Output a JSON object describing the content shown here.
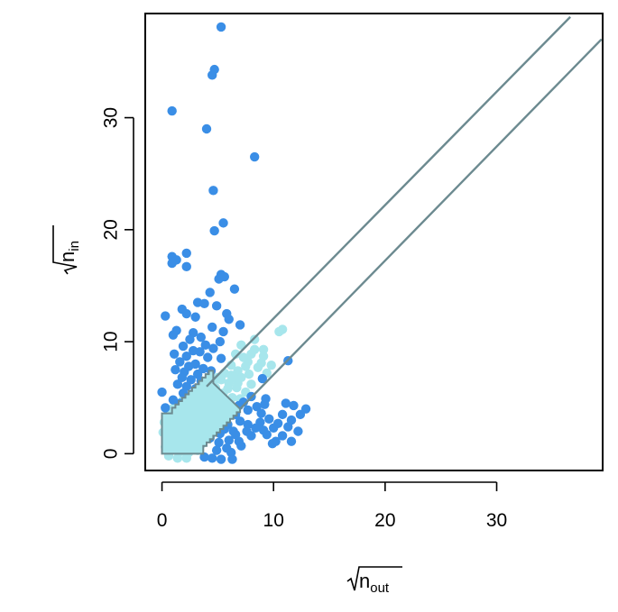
{
  "chart_data": {
    "type": "scatter",
    "title": "",
    "xlabel": {
      "base": "n",
      "sub": "out"
    },
    "ylabel": {
      "base": "n",
      "sub": "in"
    },
    "xlim": [
      -1.5,
      39.5
    ],
    "ylim": [
      -1.5,
      39.3
    ],
    "xticks": [
      "0",
      "10",
      "20",
      "30"
    ],
    "yticks": [
      "0",
      "10",
      "20",
      "30"
    ],
    "grid": false,
    "colors": {
      "highlighted": "#3a8ee6",
      "background": "#a7e6ec",
      "reference_lines": "#6c8a90",
      "frame": "#000000"
    },
    "series": [
      {
        "points": [
          [
            5.3,
            38.1
          ],
          [
            4.7,
            34.3
          ],
          [
            4.5,
            33.8
          ],
          [
            0.9,
            30.6
          ],
          [
            4.0,
            29.0
          ],
          [
            8.3,
            26.5
          ],
          [
            4.6,
            23.5
          ],
          [
            5.5,
            20.6
          ],
          [
            4.7,
            19.9
          ],
          [
            2.2,
            17.9
          ],
          [
            0.9,
            17.6
          ],
          [
            1.3,
            17.3
          ],
          [
            0.9,
            17.0
          ],
          [
            2.2,
            16.7
          ],
          [
            5.3,
            16.0
          ],
          [
            5.6,
            15.8
          ],
          [
            5.1,
            15.6
          ],
          [
            6.5,
            14.7
          ],
          [
            4.3,
            14.4
          ],
          [
            3.2,
            13.5
          ],
          [
            3.8,
            13.4
          ],
          [
            4.9,
            13.2
          ],
          [
            1.8,
            12.9
          ],
          [
            2.2,
            12.5
          ],
          [
            5.8,
            12.5
          ],
          [
            0.3,
            12.3
          ],
          [
            3.0,
            12.2
          ],
          [
            6.0,
            12.0
          ],
          [
            7.0,
            11.5
          ],
          [
            4.5,
            11.3
          ],
          [
            1.3,
            11.0
          ],
          [
            2.8,
            10.8
          ],
          [
            5.5,
            10.9
          ],
          [
            1.0,
            10.6
          ],
          [
            3.5,
            10.4
          ],
          [
            2.5,
            10.2
          ],
          [
            5.2,
            10.0
          ],
          [
            3.9,
            9.7
          ],
          [
            1.9,
            9.6
          ],
          [
            4.6,
            9.4
          ],
          [
            2.8,
            9.2
          ],
          [
            3.4,
            9.1
          ],
          [
            1.1,
            8.9
          ],
          [
            2.2,
            8.7
          ],
          [
            4.1,
            8.6
          ],
          [
            5.3,
            8.5
          ],
          [
            1.6,
            8.2
          ],
          [
            3.0,
            8.0
          ],
          [
            2.4,
            7.8
          ],
          [
            3.7,
            7.6
          ],
          [
            1.2,
            7.5
          ],
          [
            2.0,
            7.3
          ],
          [
            4.4,
            7.4
          ],
          [
            3.2,
            7.1
          ],
          [
            1.8,
            6.8
          ],
          [
            2.6,
            6.6
          ],
          [
            3.5,
            6.5
          ],
          [
            1.4,
            6.2
          ],
          [
            2.2,
            6.0
          ],
          [
            3.0,
            5.8
          ],
          [
            1.9,
            5.4
          ],
          [
            2.6,
            5.1
          ],
          [
            1.0,
            4.8
          ],
          [
            1.6,
            4.5
          ],
          [
            0.3,
            4.1
          ],
          [
            0.0,
            5.5
          ],
          [
            11.3,
            8.3
          ],
          [
            9.0,
            6.7
          ],
          [
            6.2,
            0.1
          ],
          [
            6.3,
            -0.5
          ],
          [
            5.3,
            -0.5
          ],
          [
            4.5,
            -0.4
          ],
          [
            3.8,
            -0.3
          ],
          [
            4.9,
            0.3
          ],
          [
            5.8,
            0.5
          ],
          [
            5.1,
            1.0
          ],
          [
            6.0,
            1.2
          ],
          [
            6.9,
            1.1
          ],
          [
            4.3,
            1.4
          ],
          [
            5.2,
            1.8
          ],
          [
            6.4,
            2.0
          ],
          [
            7.6,
            2.0
          ],
          [
            8.4,
            2.3
          ],
          [
            9.1,
            2.1
          ],
          [
            10.2,
            1.1
          ],
          [
            11.6,
            1.1
          ],
          [
            10.8,
            1.6
          ],
          [
            12.2,
            2.0
          ],
          [
            11.3,
            2.4
          ],
          [
            12.9,
            4.0
          ],
          [
            11.6,
            3.0
          ],
          [
            10.4,
            2.7
          ],
          [
            10.8,
            3.5
          ],
          [
            9.6,
            3.1
          ],
          [
            8.9,
            3.6
          ],
          [
            8.5,
            4.2
          ],
          [
            7.7,
            3.9
          ],
          [
            7.0,
            2.9
          ],
          [
            6.6,
            3.5
          ],
          [
            5.9,
            2.6
          ],
          [
            5.4,
            3.1
          ],
          [
            4.7,
            2.4
          ],
          [
            7.3,
            4.6
          ],
          [
            8.0,
            5.1
          ],
          [
            9.3,
            4.9
          ],
          [
            9.9,
            0.9
          ],
          [
            11.8,
            4.3
          ],
          [
            12.4,
            3.5
          ],
          [
            9.4,
            1.7
          ],
          [
            8.0,
            1.6
          ],
          [
            7.1,
            0.7
          ],
          [
            6.6,
            1.7
          ],
          [
            5.6,
            2.2
          ],
          [
            6.1,
            3.9
          ],
          [
            8.8,
            2.8
          ],
          [
            10.0,
            2.3
          ],
          [
            11.1,
            4.5
          ],
          [
            7.7,
            2.6
          ],
          [
            6.9,
            4.3
          ],
          [
            9.2,
            4.4
          ]
        ]
      },
      {
        "points": [
          [
            10.8,
            11.1
          ],
          [
            10.5,
            10.9
          ],
          [
            8.3,
            10.2
          ],
          [
            7.1,
            9.7
          ],
          [
            8.3,
            9.3
          ],
          [
            8.0,
            8.9
          ],
          [
            9.1,
            8.7
          ],
          [
            7.3,
            8.6
          ],
          [
            6.6,
            8.9
          ],
          [
            7.7,
            8.2
          ],
          [
            8.6,
            7.7
          ],
          [
            9.4,
            7.2
          ],
          [
            6.8,
            7.4
          ],
          [
            6.2,
            7.9
          ],
          [
            5.6,
            7.2
          ],
          [
            7.1,
            6.8
          ],
          [
            8.0,
            6.2
          ],
          [
            5.0,
            6.8
          ],
          [
            6.0,
            6.3
          ],
          [
            4.8,
            5.9
          ],
          [
            6.7,
            5.9
          ],
          [
            7.5,
            5.5
          ],
          [
            4.2,
            5.3
          ],
          [
            5.5,
            5.4
          ],
          [
            6.3,
            5.0
          ],
          [
            3.6,
            4.7
          ],
          [
            4.6,
            4.6
          ],
          [
            5.7,
            4.4
          ],
          [
            7.0,
            4.9
          ],
          [
            3.0,
            4.2
          ],
          [
            4.0,
            4.0
          ],
          [
            5.0,
            3.8
          ],
          [
            6.1,
            4.1
          ],
          [
            2.5,
            3.7
          ],
          [
            3.4,
            3.5
          ],
          [
            4.4,
            3.3
          ],
          [
            5.4,
            3.5
          ],
          [
            2.0,
            3.2
          ],
          [
            2.9,
            3.0
          ],
          [
            3.8,
            2.8
          ],
          [
            4.8,
            3.0
          ],
          [
            1.6,
            2.7
          ],
          [
            2.4,
            2.5
          ],
          [
            3.3,
            2.3
          ],
          [
            4.1,
            2.2
          ],
          [
            1.2,
            2.2
          ],
          [
            2.0,
            2.0
          ],
          [
            2.8,
            1.9
          ],
          [
            3.6,
            1.6
          ],
          [
            0.8,
            1.8
          ],
          [
            1.6,
            1.5
          ],
          [
            2.4,
            1.3
          ],
          [
            3.1,
            1.1
          ],
          [
            0.5,
            1.2
          ],
          [
            1.2,
            1.0
          ],
          [
            2.0,
            0.8
          ],
          [
            2.8,
            0.6
          ],
          [
            0.3,
            0.6
          ],
          [
            1.0,
            0.4
          ],
          [
            1.7,
            0.2
          ],
          [
            2.4,
            0.1
          ],
          [
            3.2,
            0.3
          ],
          [
            0.6,
            -0.2
          ],
          [
            1.4,
            -0.4
          ],
          [
            2.2,
            -0.4
          ],
          [
            0.2,
            2.8
          ],
          [
            0.5,
            3.4
          ],
          [
            0.9,
            4.0
          ],
          [
            1.4,
            4.4
          ],
          [
            1.9,
            4.8
          ],
          [
            2.6,
            5.2
          ],
          [
            3.3,
            5.6
          ],
          [
            3.9,
            6.0
          ],
          [
            4.6,
            6.4
          ],
          [
            5.3,
            6.6
          ],
          [
            6.2,
            7.0
          ],
          [
            0.1,
            1.9
          ],
          [
            2.0,
            3.8
          ],
          [
            2.9,
            4.3
          ],
          [
            3.7,
            4.9
          ],
          [
            4.5,
            5.3
          ],
          [
            1.3,
            3.0
          ],
          [
            2.2,
            2.8
          ],
          [
            3.0,
            3.4
          ],
          [
            3.9,
            3.8
          ],
          [
            5.2,
            4.6
          ],
          [
            4.3,
            1.5
          ],
          [
            3.6,
            0.9
          ],
          [
            1.0,
            2.6
          ],
          [
            1.8,
            3.5
          ],
          [
            2.6,
            4.0
          ],
          [
            0.4,
            2.3
          ],
          [
            5.9,
            5.8
          ],
          [
            6.8,
            6.3
          ],
          [
            7.8,
            7.1
          ],
          [
            8.9,
            8.1
          ],
          [
            9.8,
            7.9
          ],
          [
            9.1,
            9.3
          ],
          [
            7.5,
            7.8
          ],
          [
            6.4,
            6.8
          ],
          [
            0.7,
            3.0
          ],
          [
            1.5,
            1.9
          ],
          [
            4.9,
            5.1
          ],
          [
            3.5,
            4.3
          ],
          [
            2.4,
            3.3
          ],
          [
            1.1,
            1.4
          ]
        ]
      }
    ],
    "reference_lines": [
      {
        "x": [
          4.0,
          36.6
        ],
        "y": [
          6.0,
          39.0
        ]
      },
      {
        "x": [
          7.0,
          39.4
        ],
        "y": [
          4.0,
          37.0
        ]
      }
    ],
    "step_region": {
      "outline": [
        [
          0.0,
          0.0
        ],
        [
          0.0,
          3.6
        ],
        [
          0.9,
          3.6
        ],
        [
          0.9,
          4.1
        ],
        [
          1.2,
          4.1
        ],
        [
          1.2,
          4.4
        ],
        [
          1.5,
          4.4
        ],
        [
          1.5,
          4.7
        ],
        [
          1.8,
          4.7
        ],
        [
          1.8,
          5.0
        ],
        [
          2.1,
          5.0
        ],
        [
          2.1,
          5.3
        ],
        [
          2.4,
          5.3
        ],
        [
          2.4,
          5.6
        ],
        [
          2.7,
          5.6
        ],
        [
          2.7,
          5.9
        ],
        [
          3.0,
          5.9
        ],
        [
          3.0,
          6.2
        ],
        [
          3.3,
          6.2
        ],
        [
          3.3,
          6.5
        ],
        [
          3.6,
          6.5
        ],
        [
          3.6,
          6.8
        ],
        [
          3.9,
          6.8
        ],
        [
          3.9,
          7.1
        ],
        [
          4.2,
          7.1
        ],
        [
          4.2,
          7.4
        ],
        [
          4.6,
          7.4
        ],
        [
          4.6,
          6.3
        ],
        [
          7.0,
          4.0
        ],
        [
          7.0,
          3.7
        ],
        [
          6.7,
          3.7
        ],
        [
          6.7,
          3.4
        ],
        [
          6.4,
          3.4
        ],
        [
          6.4,
          3.1
        ],
        [
          6.1,
          3.1
        ],
        [
          6.1,
          2.8
        ],
        [
          5.8,
          2.8
        ],
        [
          5.8,
          2.5
        ],
        [
          5.5,
          2.5
        ],
        [
          5.5,
          2.2
        ],
        [
          5.2,
          2.2
        ],
        [
          5.2,
          1.9
        ],
        [
          4.9,
          1.9
        ],
        [
          4.9,
          1.6
        ],
        [
          4.6,
          1.6
        ],
        [
          4.6,
          1.3
        ],
        [
          4.3,
          1.3
        ],
        [
          4.3,
          1.0
        ],
        [
          4.0,
          1.0
        ],
        [
          4.0,
          0.7
        ],
        [
          3.7,
          0.7
        ],
        [
          3.7,
          0.0
        ],
        [
          0.0,
          0.0
        ]
      ]
    }
  }
}
